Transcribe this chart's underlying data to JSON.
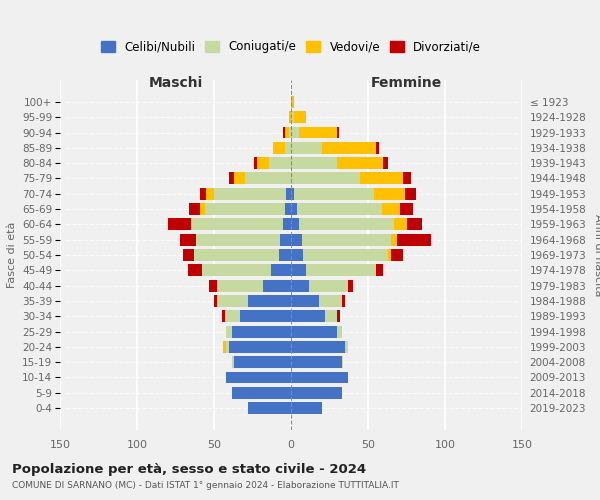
{
  "age_groups": [
    "0-4",
    "5-9",
    "10-14",
    "15-19",
    "20-24",
    "25-29",
    "30-34",
    "35-39",
    "40-44",
    "45-49",
    "50-54",
    "55-59",
    "60-64",
    "65-69",
    "70-74",
    "75-79",
    "80-84",
    "85-89",
    "90-94",
    "95-99",
    "100+"
  ],
  "birth_years": [
    "2019-2023",
    "2014-2018",
    "2009-2013",
    "2004-2008",
    "1999-2003",
    "1994-1998",
    "1989-1993",
    "1984-1988",
    "1979-1983",
    "1974-1978",
    "1969-1973",
    "1964-1968",
    "1959-1963",
    "1954-1958",
    "1949-1953",
    "1944-1948",
    "1939-1943",
    "1934-1938",
    "1929-1933",
    "1924-1928",
    "≤ 1923"
  ],
  "male": {
    "celibi": [
      28,
      38,
      42,
      37,
      40,
      38,
      33,
      28,
      18,
      13,
      8,
      7,
      5,
      4,
      3,
      0,
      0,
      0,
      0,
      0,
      0
    ],
    "coniugati": [
      0,
      0,
      0,
      1,
      2,
      4,
      10,
      20,
      30,
      45,
      55,
      55,
      60,
      52,
      47,
      30,
      14,
      4,
      1,
      0,
      0
    ],
    "vedovi": [
      0,
      0,
      0,
      0,
      2,
      0,
      0,
      0,
      0,
      0,
      0,
      0,
      0,
      3,
      5,
      7,
      8,
      8,
      3,
      1,
      0
    ],
    "divorziati": [
      0,
      0,
      0,
      0,
      0,
      0,
      2,
      2,
      5,
      9,
      7,
      10,
      15,
      7,
      4,
      3,
      2,
      0,
      1,
      0,
      0
    ]
  },
  "female": {
    "nubili": [
      20,
      33,
      37,
      33,
      35,
      30,
      22,
      18,
      12,
      10,
      8,
      7,
      5,
      4,
      2,
      0,
      0,
      0,
      0,
      0,
      0
    ],
    "coniugate": [
      0,
      0,
      0,
      1,
      2,
      3,
      8,
      15,
      25,
      45,
      55,
      58,
      62,
      55,
      52,
      45,
      30,
      20,
      5,
      2,
      0
    ],
    "vedove": [
      0,
      0,
      0,
      0,
      0,
      0,
      0,
      0,
      0,
      0,
      2,
      4,
      8,
      12,
      20,
      28,
      30,
      35,
      25,
      8,
      2
    ],
    "divorziate": [
      0,
      0,
      0,
      0,
      0,
      0,
      2,
      2,
      3,
      5,
      8,
      22,
      10,
      8,
      7,
      5,
      3,
      2,
      1,
      0,
      0
    ]
  },
  "colors": {
    "celibi": "#4472c4",
    "coniugati": "#c5d9a0",
    "vedovi": "#ffc000",
    "divorziati": "#c00000"
  },
  "legend_labels": [
    "Celibi/Nubili",
    "Coniugati/e",
    "Vedovi/e",
    "Divorziati/e"
  ],
  "title": "Popolazione per età, sesso e stato civile - 2024",
  "subtitle": "COMUNE DI SARNANO (MC) - Dati ISTAT 1° gennaio 2024 - Elaborazione TUTTITALIA.IT",
  "xlabel_left": "Maschi",
  "xlabel_right": "Femmine",
  "ylabel_left": "Fasce di età",
  "ylabel_right": "Anni di nascita",
  "xlim": 150,
  "background_color": "#f0f0f0"
}
